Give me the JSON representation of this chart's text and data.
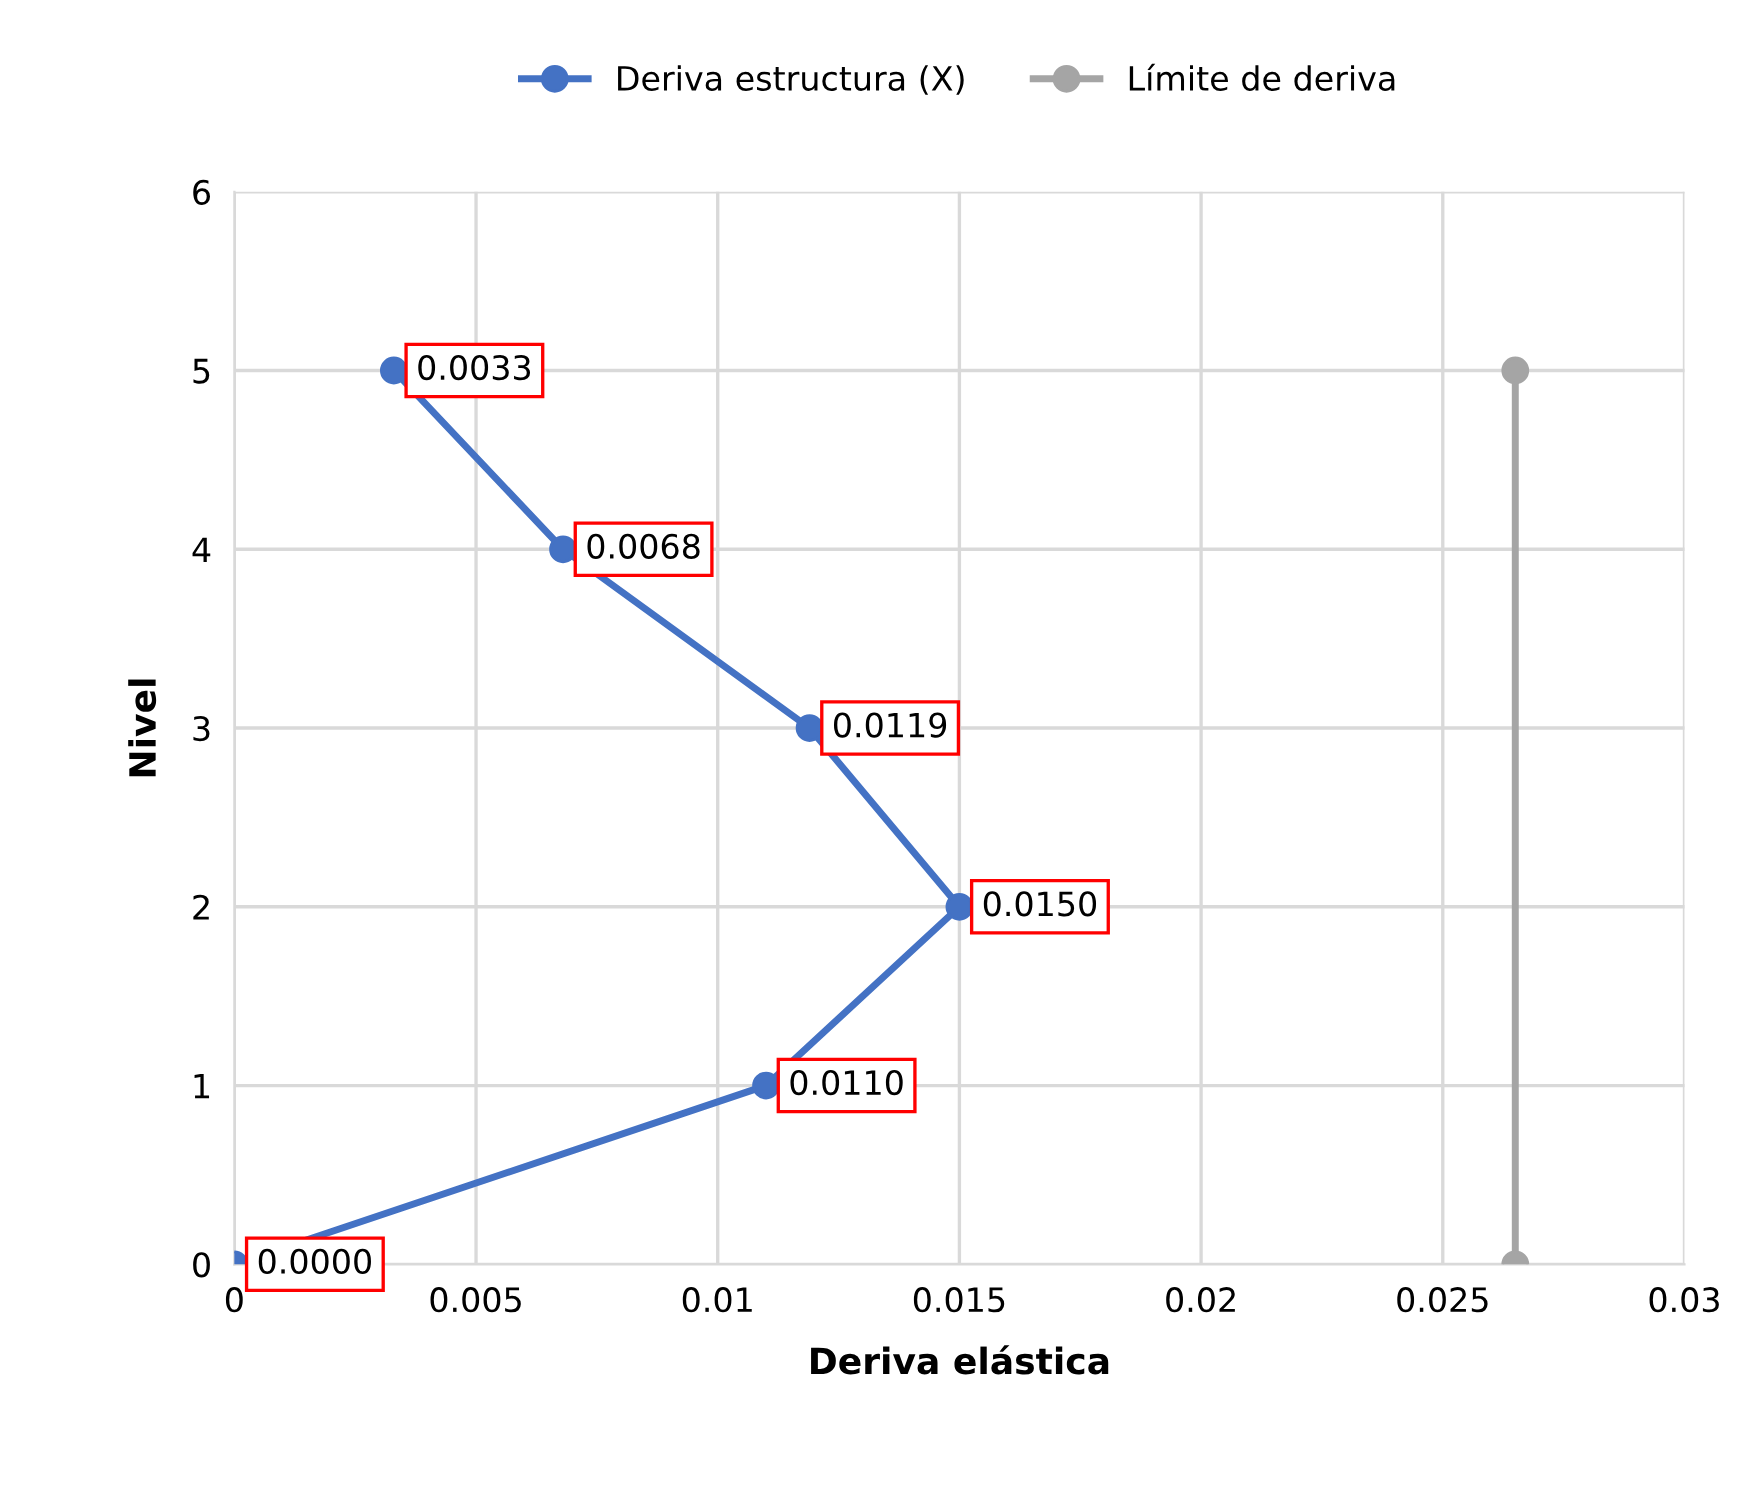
{
  "chart_data": {
    "type": "line",
    "xlabel": "Deriva elástica",
    "ylabel": "Nivel",
    "series": [
      {
        "name": "Deriva estructura (X)",
        "color": "#4472c4",
        "x": [
          0,
          0.011,
          0.015,
          0.0119,
          0.0068,
          0.0033
        ],
        "values": [
          0,
          1,
          2,
          3,
          4,
          5
        ]
      },
      {
        "name": "Límite de deriva",
        "color": "#a5a5a5",
        "x": [
          0.0265,
          0.0265
        ],
        "values": [
          0,
          5
        ]
      }
    ],
    "xlim": [
      0,
      0.03
    ],
    "xticks": [
      0,
      0.005,
      0.01,
      0.015,
      0.02,
      0.025,
      0.03
    ],
    "ylim": [
      0,
      6
    ],
    "yticks": [
      0,
      1,
      2,
      3,
      4,
      5,
      6
    ],
    "annotations": [
      {
        "text": "0.0000",
        "x": 0,
        "y": 0
      },
      {
        "text": "0.0110",
        "x": 0.011,
        "y": 1
      },
      {
        "text": "0.0150",
        "x": 0.015,
        "y": 2
      },
      {
        "text": "0.0119",
        "x": 0.0119,
        "y": 3
      },
      {
        "text": "0.0068",
        "x": 0.0068,
        "y": 4
      },
      {
        "text": "0.0033",
        "x": 0.0033,
        "y": 5
      }
    ],
    "grid": true,
    "legend": "top",
    "marker": "circle",
    "line_style": "solid"
  }
}
